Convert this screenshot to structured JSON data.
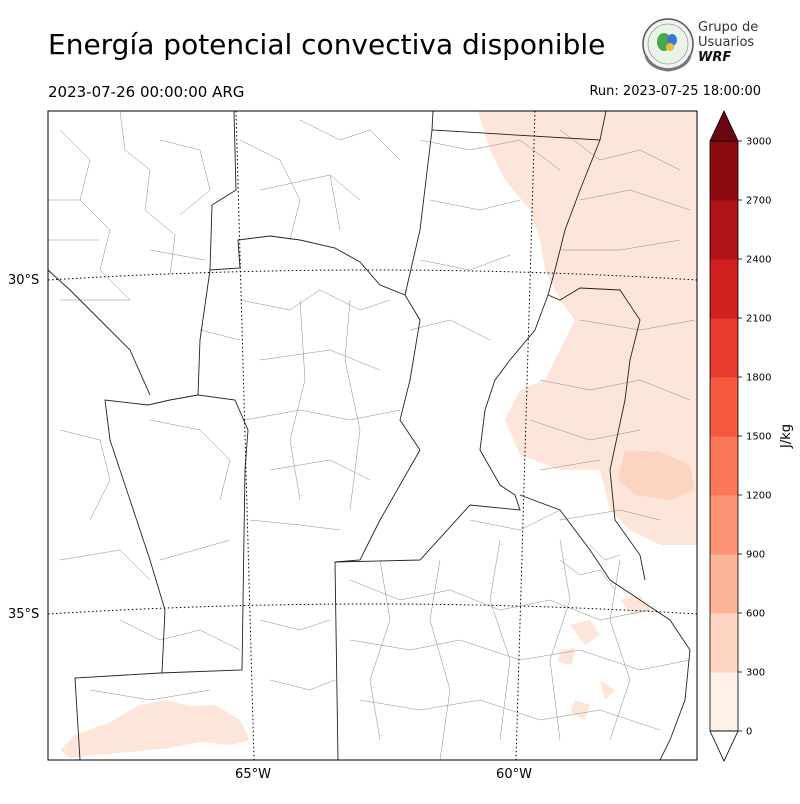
{
  "header": {
    "title": "Energía potencial convectiva disponible",
    "valid_time": "2023-07-26 00:00:00 ARG",
    "run_time": "Run: 2023-07-25 18:00:00"
  },
  "logo": {
    "line1": "Grupo de",
    "line2": "Usuarios",
    "line3": "WRF"
  },
  "map": {
    "lat_labels": [
      "30°S",
      "35°S"
    ],
    "lon_labels": [
      "65°W",
      "60°W"
    ]
  },
  "colorbar": {
    "unit": "J/kg",
    "levels": [
      "0",
      "300",
      "600",
      "900",
      "1200",
      "1500",
      "1800",
      "2100",
      "2400",
      "2700",
      "3000"
    ],
    "colors": [
      "#fff0e9",
      "#fdd4c1",
      "#fcb499",
      "#fc9474",
      "#fb7757",
      "#f4593e",
      "#e83a2d",
      "#d0201f",
      "#b11318",
      "#8e0a13",
      "#6e0612"
    ],
    "extend": "both"
  },
  "field_colors": {
    "low": "#fde5da",
    "mid": "#fdd4c1"
  }
}
